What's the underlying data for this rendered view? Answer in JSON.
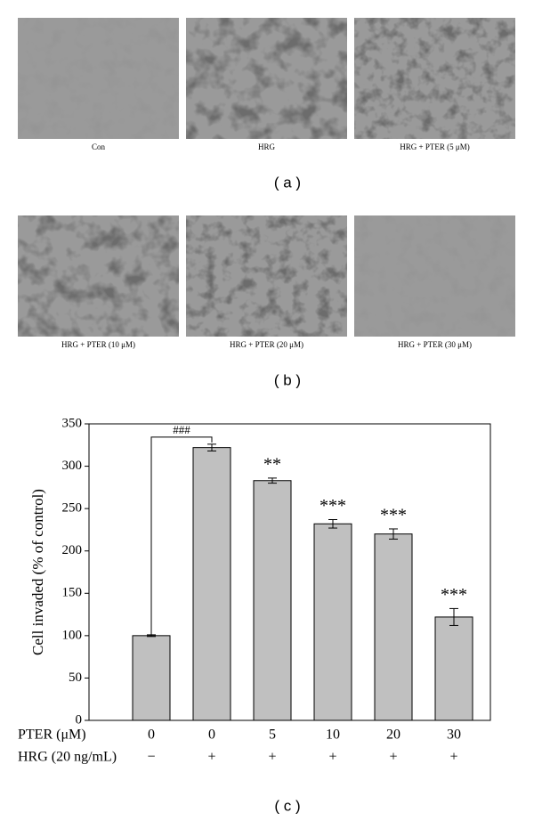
{
  "panels": [
    {
      "label": "( a )",
      "images": [
        {
          "caption": "Con"
        },
        {
          "caption": "HRG"
        },
        {
          "caption": "HRG + PTER (5 μM)"
        }
      ]
    },
    {
      "label": "( b )",
      "images": [
        {
          "caption": "HRG + PTER (10 μM)"
        },
        {
          "caption": "HRG + PTER (20 μM)"
        },
        {
          "caption": "HRG + PTER (30 μM)"
        }
      ]
    }
  ],
  "chart_data": {
    "type": "bar",
    "label": "( c )",
    "ylabel": "Cell invaded (% of control)",
    "category_rows": [
      {
        "label": "PTER (μM)",
        "categories": [
          "0",
          "0",
          "5",
          "10",
          "20",
          "30"
        ]
      },
      {
        "label": "HRG (20 ng/mL)",
        "categories": [
          "−",
          "+",
          "+",
          "+",
          "+",
          "+"
        ]
      }
    ],
    "values": [
      100,
      322,
      283,
      232,
      220,
      122
    ],
    "errors": [
      1,
      4,
      3,
      5,
      6,
      10
    ],
    "color": "#c0c0c0",
    "ylim": [
      0,
      350
    ],
    "yticks": [
      0,
      50,
      100,
      150,
      200,
      250,
      300,
      350
    ],
    "annotations": [
      {
        "index": 2,
        "text": "**"
      },
      {
        "index": 3,
        "text": "***"
      },
      {
        "index": 4,
        "text": "***"
      },
      {
        "index": 5,
        "text": "***"
      }
    ],
    "bracket": {
      "from": 0,
      "to": 1,
      "text": "###"
    }
  }
}
